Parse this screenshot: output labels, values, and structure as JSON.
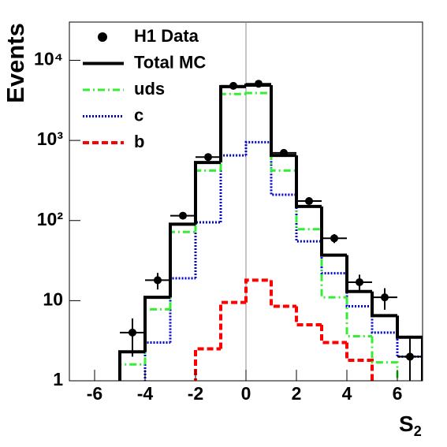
{
  "chart_data": {
    "type": "histogram",
    "xlabel": "S",
    "xlabel_sub": "2",
    "ylabel": "Events",
    "bins": [
      -7,
      -6,
      -5,
      -4,
      -3,
      -2,
      -1,
      0,
      1,
      2,
      3,
      4,
      5,
      6,
      7
    ],
    "series": [
      {
        "name": "Total MC",
        "color": "#000000",
        "style": "solid",
        "width": 4,
        "values": [
          null,
          null,
          2.3,
          11,
          90,
          530,
          4700,
          4900,
          650,
          150,
          37,
          13,
          6.5,
          3.5
        ]
      },
      {
        "name": "uds",
        "color": "#33ee33",
        "style": "dashdot",
        "width": 3,
        "values": [
          null,
          null,
          1.6,
          7.8,
          72,
          420,
          3800,
          3900,
          420,
          78,
          11,
          3.6,
          1.7,
          null
        ]
      },
      {
        "name": "c",
        "color": "#0000cc",
        "style": "dotted",
        "width": 3,
        "values": [
          null,
          null,
          null,
          3,
          19,
          95,
          650,
          950,
          210,
          55,
          22,
          8.5,
          4,
          2
        ]
      },
      {
        "name": "b",
        "color": "#ff0000",
        "style": "dashed",
        "width": 4,
        "values": [
          null,
          null,
          null,
          null,
          null,
          2.5,
          9.5,
          18,
          8.5,
          5,
          3,
          1.8,
          null,
          null
        ]
      }
    ],
    "points": {
      "name": "H1 Data",
      "color": "#000000",
      "x": [
        -4.5,
        -3.5,
        -2.5,
        -1.5,
        -0.5,
        0.5,
        1.5,
        2.5,
        3.5,
        4.5,
        5.5,
        6.5
      ],
      "values": [
        4,
        18,
        115,
        620,
        4800,
        5100,
        700,
        175,
        60,
        17,
        11,
        2
      ],
      "errors": [
        2,
        4.2,
        11,
        25,
        70,
        70,
        26,
        13,
        7.7,
        4.1,
        3.3,
        1.4
      ]
    },
    "xlim": [
      -7,
      7
    ],
    "ylim": [
      1,
      30000
    ],
    "log_y": true,
    "xticks": [
      -6,
      -4,
      -2,
      0,
      2,
      4,
      6
    ],
    "yticks": [
      1,
      10,
      {
        "value": 100,
        "label": "10²"
      },
      {
        "value": 1000,
        "label": "10³"
      },
      {
        "value": 10000,
        "label": "10⁴"
      }
    ],
    "legend": "upper left"
  }
}
